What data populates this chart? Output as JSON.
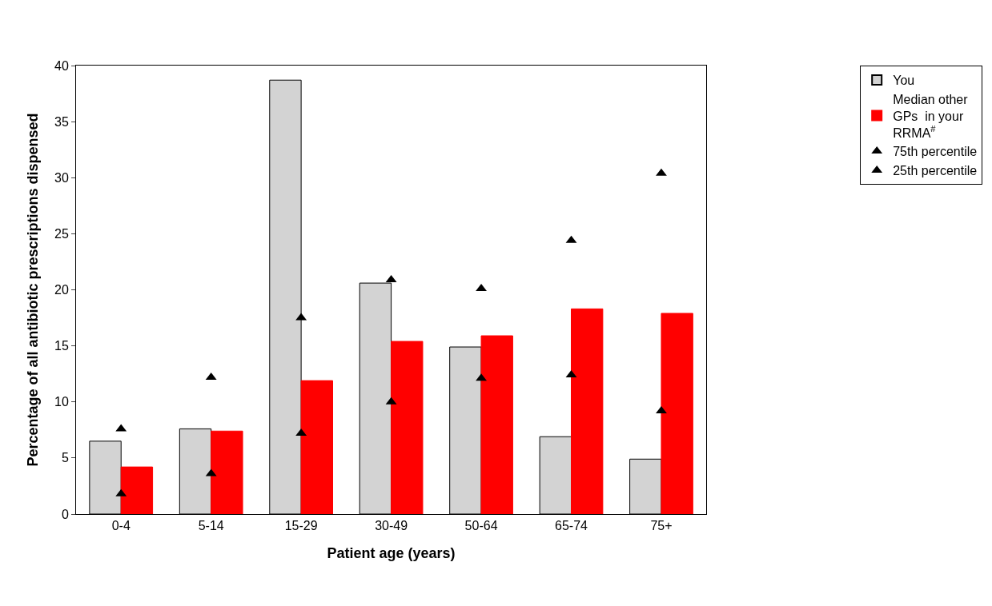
{
  "chart_data": {
    "type": "bar",
    "xlabel": "Patient age (years)",
    "ylabel": "Percentage of all antibiotic prescriptions dispensed",
    "categories": [
      "0-4",
      "5-14",
      "15-29",
      "30-49",
      "50-64",
      "65-74",
      "75+"
    ],
    "series": [
      {
        "name": "You",
        "color": "#d3d3d3",
        "values": [
          6.5,
          7.6,
          38.7,
          20.6,
          14.9,
          6.9,
          4.9
        ]
      },
      {
        "name": "Median other GPs  in your RRMA$^{#}$",
        "color": "#ff0000",
        "values": [
          4.2,
          7.4,
          11.9,
          15.4,
          15.9,
          18.3,
          17.9
        ]
      },
      {
        "name": "75th percentile",
        "type": "scatter",
        "marker": "triangle",
        "color": "#000000",
        "x": [
          "0-4",
          "5-14",
          "15-29",
          "30-49",
          "50-64",
          "65-74",
          "75+"
        ],
        "values": [
          7.6,
          12.2,
          17.5,
          20.9,
          20.1,
          24.4,
          30.4
        ]
      },
      {
        "name": "25th percentile",
        "type": "scatter",
        "marker": "triangle",
        "color": "#000000",
        "x": [
          "0-4",
          "5-14",
          "15-29",
          "30-49",
          "50-64",
          "65-74",
          "75+"
        ],
        "values": [
          1.8,
          3.6,
          7.2,
          10.0,
          12.1,
          12.4,
          9.2
        ]
      }
    ],
    "ylim": [
      0,
      40
    ],
    "yticks": [
      0,
      5,
      10,
      15,
      20,
      25,
      30,
      35,
      40
    ],
    "legend": "top right"
  }
}
